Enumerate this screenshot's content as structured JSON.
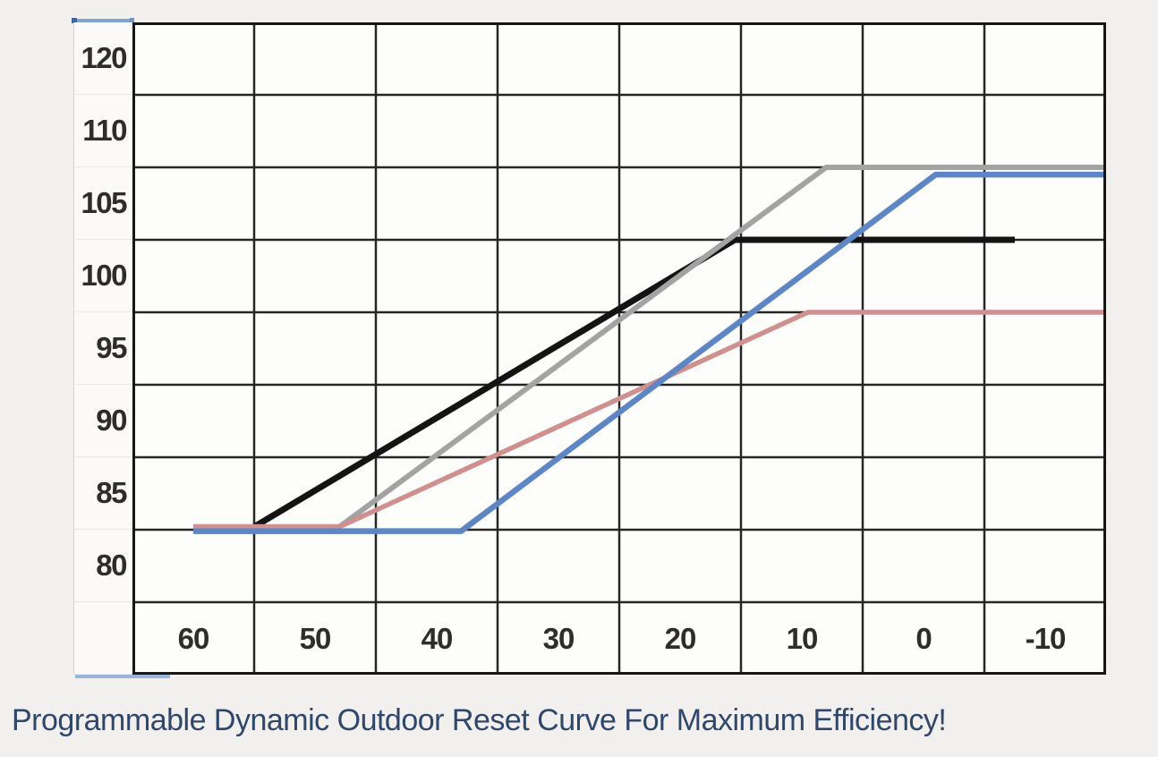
{
  "page": {
    "caption": "Programmable Dynamic Outdoor Reset Curve For Maximum Efficiency!"
  },
  "chart_data": {
    "type": "line",
    "title": "Programmable Dynamic Outdoor Reset Curve For Maximum Efficiency!",
    "xlabel": "",
    "ylabel": "",
    "grid": true,
    "legend": "none",
    "x_ticks": [
      60,
      50,
      40,
      30,
      20,
      10,
      0,
      -10
    ],
    "y_ticks": [
      120,
      110,
      105,
      100,
      95,
      90,
      85,
      80
    ],
    "x_range_drawn": [
      60,
      -15
    ],
    "y_range_drawn": [
      80,
      120
    ],
    "series": [
      {
        "name": "black-reset-curve",
        "color": "#141414",
        "width": 7,
        "points": [
          [
            55,
            82.7
          ],
          [
            15.5,
            102.5
          ],
          [
            -7.5,
            102.5
          ]
        ]
      },
      {
        "name": "gray-reset-curve",
        "color": "#a3a3a3",
        "width": 6,
        "points": [
          [
            60,
            82.7
          ],
          [
            48,
            82.7
          ],
          [
            8,
            107.5
          ],
          [
            -15,
            107.5
          ]
        ]
      },
      {
        "name": "pink-reset-curve",
        "color": "#cf908f",
        "width": 5.5,
        "points": [
          [
            60,
            82.7
          ],
          [
            48,
            82.7
          ],
          [
            9.5,
            97.5
          ],
          [
            -15,
            97.5
          ]
        ]
      },
      {
        "name": "blue-reset-curve",
        "color": "#5e86c4",
        "width": 6.5,
        "points": [
          [
            60,
            82.4
          ],
          [
            38,
            82.4
          ],
          [
            -1,
            107
          ],
          [
            -15,
            107
          ]
        ]
      }
    ],
    "grid_color": "#262626",
    "plot_background": "#fdfdfc"
  }
}
